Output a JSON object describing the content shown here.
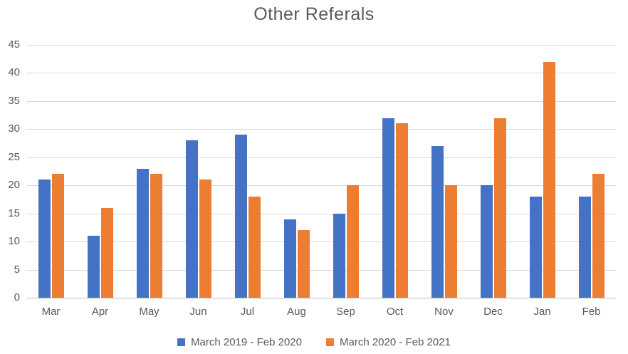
{
  "chart_data": {
    "type": "bar",
    "title": "Other Referals",
    "categories": [
      "Mar",
      "Apr",
      "May",
      "Jun",
      "Jul",
      "Aug",
      "Sep",
      "Oct",
      "Nov",
      "Dec",
      "Jan",
      "Feb"
    ],
    "series": [
      {
        "name": "March 2019 - Feb 2020",
        "color": "#4472C4",
        "values": [
          21,
          11,
          23,
          28,
          29,
          14,
          15,
          32,
          27,
          20,
          18,
          18
        ]
      },
      {
        "name": "March 2020 - Feb 2021",
        "color": "#ED7D31",
        "values": [
          22,
          16,
          22,
          21,
          18,
          12,
          20,
          31,
          20,
          32,
          42,
          22
        ]
      }
    ],
    "yticks": [
      0,
      5,
      10,
      15,
      20,
      25,
      30,
      35,
      40,
      45
    ],
    "ylim": [
      0,
      45
    ],
    "xlabel": "",
    "ylabel": "",
    "grid": "horizontal",
    "legend_position": "bottom"
  },
  "colors": {
    "series1": "#4472C4",
    "series2": "#ED7D31",
    "text": "#595959",
    "gridline": "#D9D9D9",
    "axis_line": "#BFBFBF",
    "background": "#FFFFFF"
  }
}
